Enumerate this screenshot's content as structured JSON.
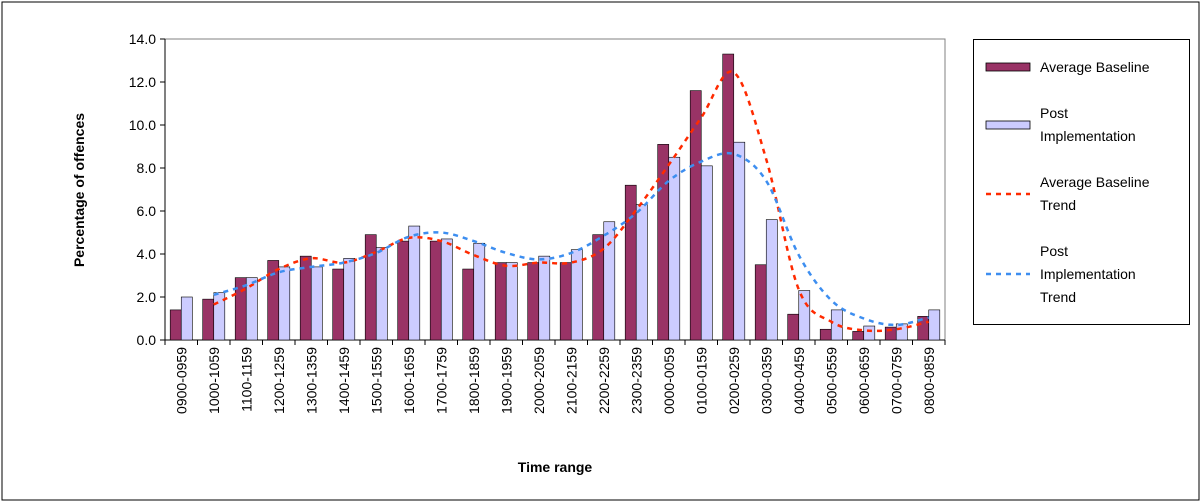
{
  "chart_data": {
    "type": "bar",
    "x_label": "Time range",
    "y_label": "Percentage of offences",
    "categories": [
      "0900-0959",
      "1000-1059",
      "1100-1159",
      "1200-1259",
      "1300-1359",
      "1400-1459",
      "1500-1559",
      "1600-1659",
      "1700-1759",
      "1800-1859",
      "1900-1959",
      "2000-2059",
      "2100-2159",
      "2200-2259",
      "2300-2359",
      "0000-0059",
      "0100-0159",
      "0200-0259",
      "0300-0359",
      "0400-0459",
      "0500-0559",
      "0600-0659",
      "0700-0759",
      "0800-0859"
    ],
    "series": [
      {
        "name": "Average Baseline",
        "type": "bar",
        "color": "#993366",
        "values": [
          1.4,
          1.9,
          2.9,
          3.7,
          3.9,
          3.3,
          4.9,
          4.6,
          4.6,
          3.3,
          3.6,
          3.6,
          3.6,
          4.9,
          7.2,
          9.1,
          11.6,
          13.3,
          3.5,
          1.2,
          0.5,
          0.4,
          0.6,
          1.1
        ]
      },
      {
        "name": "Post Implementation",
        "type": "bar",
        "color": "#ccccff",
        "values": [
          2.0,
          2.2,
          2.9,
          3.4,
          3.4,
          3.8,
          4.3,
          5.3,
          4.7,
          4.5,
          3.6,
          3.9,
          4.2,
          5.5,
          6.3,
          8.5,
          8.1,
          9.2,
          5.6,
          2.3,
          1.4,
          0.65,
          0.75,
          1.4
        ]
      },
      {
        "name": "Average Baseline Trend",
        "type": "line",
        "color": "#ff2a00",
        "values": [
          null,
          1.65,
          2.4,
          3.3,
          3.8,
          3.6,
          4.1,
          4.75,
          4.6,
          3.95,
          3.45,
          3.6,
          3.6,
          4.25,
          6.05,
          8.15,
          10.35,
          12.45,
          8.4,
          2.35,
          0.85,
          0.45,
          0.5,
          0.85
        ]
      },
      {
        "name": "Post Implementation Trend",
        "type": "line",
        "color": "#3d8ef0",
        "values": [
          null,
          2.1,
          2.55,
          3.15,
          3.4,
          3.6,
          4.05,
          4.8,
          5.0,
          4.6,
          4.05,
          3.75,
          4.05,
          4.85,
          5.9,
          7.4,
          8.3,
          8.65,
          7.4,
          3.95,
          1.85,
          1.0,
          0.7,
          1.05
        ]
      }
    ],
    "ylim": [
      0,
      14
    ],
    "yticks": [
      {
        "value": 0,
        "label": "0.0"
      },
      {
        "value": 2,
        "label": "2.0"
      },
      {
        "value": 4,
        "label": "4.0"
      },
      {
        "value": 6,
        "label": "6.0"
      },
      {
        "value": 8,
        "label": "8.0"
      },
      {
        "value": 10,
        "label": "10.0"
      },
      {
        "value": 12,
        "label": "12.0"
      },
      {
        "value": 14,
        "label": "14.0"
      }
    ],
    "grid": false,
    "legend": "right"
  }
}
